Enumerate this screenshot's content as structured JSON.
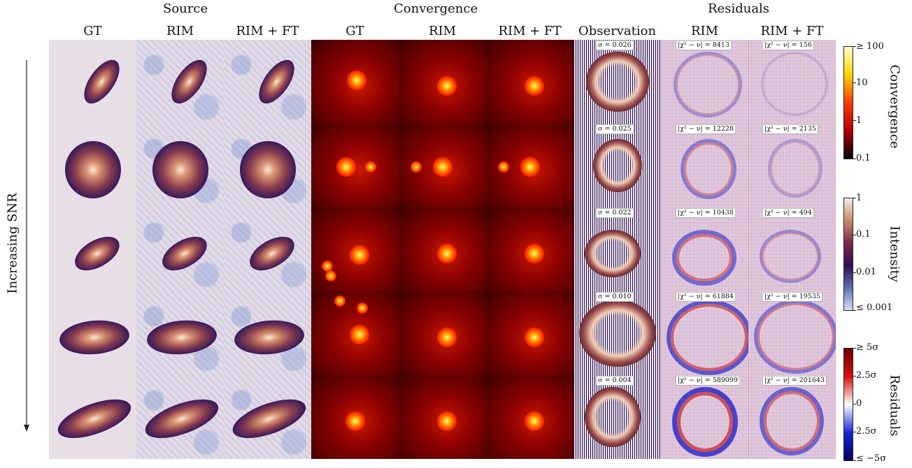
{
  "groups": {
    "source": "Source",
    "convergence": "Convergence",
    "residuals": "Residuals"
  },
  "columns": [
    "GT",
    "RIM",
    "RIM + FT",
    "GT",
    "RIM",
    "RIM + FT",
    "Observation",
    "RIM",
    "RIM + FT"
  ],
  "side_label": "Increasing SNR",
  "rows": [
    {
      "sigma": "σ = 0.026",
      "chi_rim": "|χ² − ν| = 8413",
      "chi_ft": "|χ² − ν| = 156"
    },
    {
      "sigma": "σ = 0.025",
      "chi_rim": "|χ² − ν| = 12228",
      "chi_ft": "|χ² − ν| = 2135"
    },
    {
      "sigma": "σ = 0.022",
      "chi_rim": "|χ² − ν| = 10438",
      "chi_ft": "|χ² − ν| = 494"
    },
    {
      "sigma": "σ = 0.010",
      "chi_rim": "|χ² − ν| = 61884",
      "chi_ft": "|χ² − ν| = 19535"
    },
    {
      "sigma": "σ = 0.004",
      "chi_rim": "|χ² − ν| = 589099",
      "chi_ft": "|χ² − ν| = 201643"
    }
  ],
  "colorbars": {
    "convergence": {
      "label": "Convergence",
      "ticks": [
        "≥ 100",
        "10",
        "1",
        "0.1"
      ],
      "colors": [
        "#ffffd0",
        "#ffd400",
        "#ff3a00",
        "#b00000",
        "#000000"
      ]
    },
    "intensity": {
      "label": "Intensity",
      "ticks": [
        "1",
        "0.1",
        "0.01",
        "≤ 0.001"
      ],
      "colors": [
        "#f2ece8",
        "#c98a6a",
        "#7a2848",
        "#2c0e50",
        "#5a6fb4",
        "#d8dff0"
      ]
    },
    "residuals": {
      "label": "Residuals",
      "ticks": [
        "≥ 5σ",
        "2.5σ",
        "0",
        "2.5σ",
        "≤ −5σ"
      ],
      "colors": [
        "#6a0000",
        "#d81010",
        "#ffffff",
        "#1428d8",
        "#00005a"
      ]
    }
  },
  "colors": {
    "source_bg": "#e8dee6",
    "conv_bg": "#3a0000",
    "obs_bg": "#d6cfe0"
  }
}
